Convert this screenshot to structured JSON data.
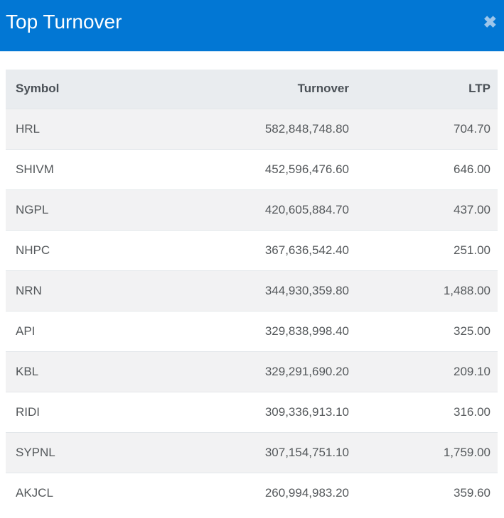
{
  "dialog": {
    "title": "Top Turnover",
    "close_icon": "✖"
  },
  "colors": {
    "header_bg": "#0277d4",
    "header_text": "#ffffff",
    "close_icon": "#9dc6eb",
    "table_header_bg": "#e9ecef",
    "table_header_text": "#4a5056",
    "row_alt_bg": "#f2f2f3",
    "row_border": "#e3e7ea",
    "cell_text": "#54585b"
  },
  "table": {
    "columns": [
      {
        "key": "symbol",
        "label": "Symbol",
        "align": "left"
      },
      {
        "key": "turnover",
        "label": "Turnover",
        "align": "right"
      },
      {
        "key": "ltp",
        "label": "LTP",
        "align": "right"
      }
    ],
    "rows": [
      {
        "symbol": "HRL",
        "turnover": "582,848,748.80",
        "ltp": "704.70"
      },
      {
        "symbol": "SHIVM",
        "turnover": "452,596,476.60",
        "ltp": "646.00"
      },
      {
        "symbol": "NGPL",
        "turnover": "420,605,884.70",
        "ltp": "437.00"
      },
      {
        "symbol": "NHPC",
        "turnover": "367,636,542.40",
        "ltp": "251.00"
      },
      {
        "symbol": "NRN",
        "turnover": "344,930,359.80",
        "ltp": "1,488.00"
      },
      {
        "symbol": "API",
        "turnover": "329,838,998.40",
        "ltp": "325.00"
      },
      {
        "symbol": "KBL",
        "turnover": "329,291,690.20",
        "ltp": "209.10"
      },
      {
        "symbol": "RIDI",
        "turnover": "309,336,913.10",
        "ltp": "316.00"
      },
      {
        "symbol": "SYPNL",
        "turnover": "307,154,751.10",
        "ltp": "1,759.00"
      },
      {
        "symbol": "AKJCL",
        "turnover": "260,994,983.20",
        "ltp": "359.60"
      }
    ]
  }
}
